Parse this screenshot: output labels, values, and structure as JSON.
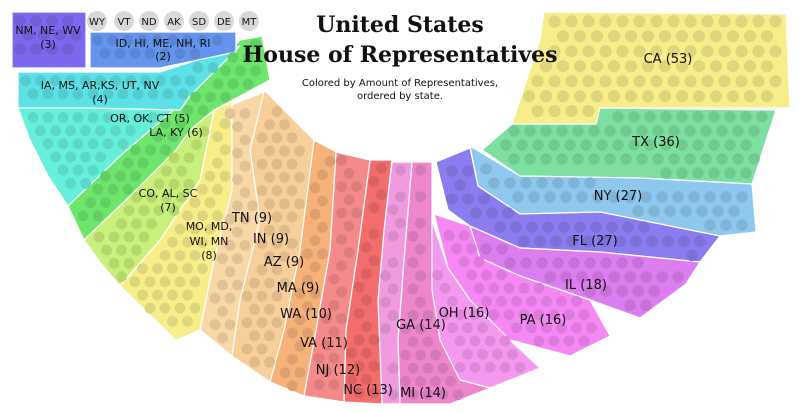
{
  "header": {
    "title_line1": "United States",
    "title_line2": "House of Representatives",
    "subtitle_line1": "Colored by Amount of Representatives,",
    "subtitle_line2": "ordered by state."
  },
  "single_states": [
    "WY",
    "VT",
    "ND",
    "AK",
    "SD",
    "DE",
    "MT"
  ],
  "groups": {
    "g3": {
      "line1": "NM, NE, WV",
      "line2": "(3)",
      "color": "#7b68ee"
    },
    "g2": {
      "line1": "ID, HI, ME, NH, RI",
      "line2": "(2)",
      "color": "#6495ed"
    },
    "g4": {
      "line1": "IA, MS, AR,KS, UT, NV",
      "line2": "(4)",
      "color": "#5ce1e6"
    },
    "g5": {
      "line1": "OR, OK, CT (5)",
      "color": "#66f0dc"
    },
    "g6": {
      "line1": "LA, KY (6)",
      "color": "#6ee66e"
    },
    "g7": {
      "line1": "CO, AL, SC",
      "line2": "(7)",
      "color": "#c8f07a"
    },
    "g8": {
      "line1": "MO, MD,",
      "line2": "WI, MN",
      "line3": "(8)",
      "color": "#f5e88a"
    }
  },
  "states": {
    "tn": "TN (9)",
    "in": "IN (9)",
    "az": "AZ (9)",
    "ma": "MA (9)",
    "wa": "WA (10)",
    "va": "VA (11)",
    "nj": "NJ (12)",
    "nc": "NC (13)",
    "mi": "MI (14)",
    "ga": "GA (14)",
    "oh": "OH (16)",
    "pa": "PA (16)",
    "il": "IL (18)",
    "fl": "FL (27)",
    "ny": "NY (27)",
    "tx": "TX (36)",
    "ca": "CA (53)"
  },
  "colors": {
    "nine": "#f8cf9a",
    "wa_va": "#f7b27a",
    "nj_nc": "#f46d6d",
    "mi_ga": "#ee86cc",
    "oh_pa": "#f588f5",
    "il": "#dd7ef0",
    "fl": "#8b7cf0",
    "ny": "#8ec8ee",
    "tx": "#7ee0a0",
    "ca": "#f7ee8a",
    "single": "#d8d8d8"
  }
}
